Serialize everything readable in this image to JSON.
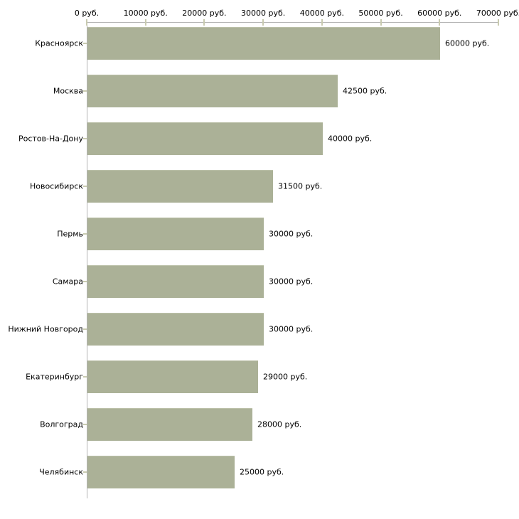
{
  "chart_data": {
    "type": "bar",
    "orientation": "horizontal",
    "title": "",
    "categories": [
      "Красноярск",
      "Москва",
      "Ростов-На-Дону",
      "Новосибирск",
      "Пермь",
      "Самара",
      "Нижний Новгород",
      "Екатеринбург",
      "Волгоград",
      "Челябинск"
    ],
    "values": [
      60000,
      42500,
      40000,
      31500,
      30000,
      30000,
      30000,
      29000,
      28000,
      25000
    ],
    "value_labels": [
      "60000 руб.",
      "42500 руб.",
      "40000 руб.",
      "31500 руб.",
      "30000 руб.",
      "30000 руб.",
      "30000 руб.",
      "29000 руб.",
      "28000 руб.",
      "25000 руб."
    ],
    "x_tick_values": [
      0,
      10000,
      20000,
      30000,
      40000,
      50000,
      60000,
      70000
    ],
    "x_tick_labels": [
      "0 руб.",
      "10000 руб.",
      "20000 руб.",
      "30000 руб.",
      "40000 руб.",
      "50000 руб.",
      "60000 руб.",
      "70000 руб."
    ],
    "xlim": [
      0,
      70000
    ],
    "unit": "руб.",
    "grid": false,
    "legend_position": "none",
    "axis_position": "top",
    "colors": {
      "bar": "#abb197",
      "bar_edge": "#bcc1a9",
      "axis": "#b3b3b3",
      "tick": "#c9cbb0",
      "text": "#000000",
      "background": "#ffffff"
    }
  }
}
